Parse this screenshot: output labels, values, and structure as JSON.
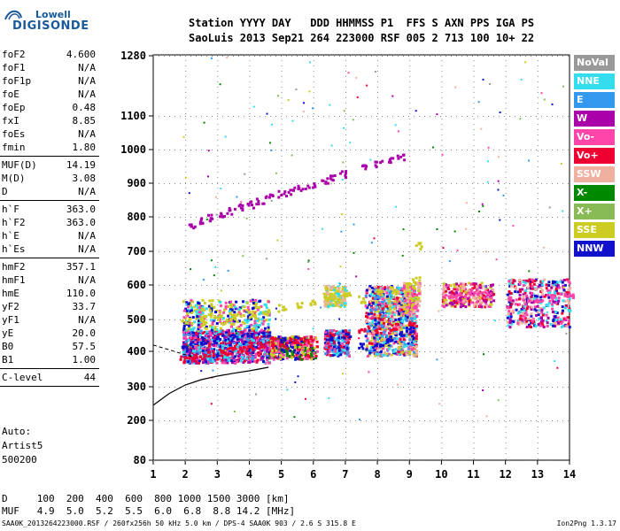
{
  "logo": {
    "line1": "Lowell",
    "line2": "DIGISONDE"
  },
  "header": {
    "labels": [
      "Station",
      "YYYY",
      "DAY",
      "DDD",
      "HHMMSS",
      "P1",
      "FFS",
      "S",
      "AXN",
      "PPS",
      "IGA",
      "PS"
    ],
    "values": [
      "SaoLuis",
      "2013",
      "Sep21",
      "264",
      "223000",
      "RSF",
      "005",
      "2",
      "713",
      "100",
      "10+",
      "22"
    ]
  },
  "params": [
    {
      "group": [
        [
          "foF2",
          "4.600"
        ],
        [
          "foF1",
          "N/A"
        ],
        [
          "foF1p",
          "N/A"
        ],
        [
          "foE",
          "N/A"
        ],
        [
          "foEp",
          "0.48"
        ],
        [
          "fxI",
          "8.85"
        ],
        [
          "foEs",
          "N/A"
        ],
        [
          "fmin",
          "1.80"
        ]
      ]
    },
    {
      "group": [
        [
          "MUF(D)",
          "14.19"
        ],
        [
          "M(D)",
          "3.08"
        ],
        [
          "D",
          "N/A"
        ]
      ]
    },
    {
      "group": [
        [
          "h`F",
          "363.0"
        ],
        [
          "h`F2",
          "363.0"
        ],
        [
          "h`E",
          "N/A"
        ],
        [
          "h`Es",
          "N/A"
        ]
      ]
    },
    {
      "group": [
        [
          "hmF2",
          "357.1"
        ],
        [
          "hmF1",
          "N/A"
        ],
        [
          "hmE",
          "110.0"
        ],
        [
          "yF2",
          "33.7"
        ],
        [
          "yF1",
          "N/A"
        ],
        [
          "yE",
          "20.0"
        ],
        [
          "B0",
          "57.5"
        ],
        [
          "B1",
          "1.00"
        ]
      ]
    },
    {
      "group": [
        [
          "C-level",
          "44"
        ]
      ]
    }
  ],
  "auto": {
    "l1": "Auto:",
    "l2": "Artist5",
    "l3": "500200"
  },
  "legend": [
    {
      "label": "NoVal",
      "color": "#999999"
    },
    {
      "label": "NNE",
      "color": "#33ddee"
    },
    {
      "label": "E",
      "color": "#3399ee"
    },
    {
      "label": "W",
      "color": "#aa00aa"
    },
    {
      "label": "Vo-",
      "color": "#ff44aa"
    },
    {
      "label": "Vo+",
      "color": "#ee0033"
    },
    {
      "label": "SSW",
      "color": "#f0b0a0"
    },
    {
      "label": "X-",
      "color": "#008800"
    },
    {
      "label": "X+",
      "color": "#88bb55"
    },
    {
      "label": "SSE",
      "color": "#cccc22"
    },
    {
      "label": "NNW",
      "color": "#1111cc"
    }
  ],
  "dtable": {
    "d_row": "D     100  200  400  600  800 1000 1500 3000 [km]",
    "muf_row": "MUF   4.9  5.0  5.2  5.5  6.0  6.8  8.8 14.2 [MHz]"
  },
  "footer": {
    "left": "SAA0K_2013264223000.RSF / 260fx256h 50 kHz 5.0 km / DPS-4 SAA0K 903 / 2.6 S 315.8 E",
    "right": "Ion2Png 1.3.17"
  },
  "chart_data": {
    "type": "scatter",
    "xlim": [
      1,
      14
    ],
    "ylim": [
      80,
      1280
    ],
    "xticks": [
      1,
      2,
      3,
      4,
      5,
      6,
      7,
      8,
      9,
      10,
      11,
      12,
      13,
      14
    ],
    "yticks": [
      80,
      200,
      300,
      400,
      500,
      600,
      700,
      800,
      900,
      1000,
      1100,
      1280
    ],
    "y_scale": "nonlinear",
    "series": [
      {
        "name": "W",
        "color": "#aa00aa",
        "points": [
          [
            2.2,
            780
          ],
          [
            2.5,
            790
          ],
          [
            2.8,
            800
          ],
          [
            3.1,
            810
          ],
          [
            3.4,
            820
          ],
          [
            3.7,
            830
          ],
          [
            4.0,
            840
          ],
          [
            4.3,
            850
          ],
          [
            4.6,
            860
          ],
          [
            5.0,
            870
          ],
          [
            5.3,
            880
          ],
          [
            5.6,
            890
          ],
          [
            5.9,
            900
          ],
          [
            6.3,
            910
          ],
          [
            6.6,
            920
          ],
          [
            6.9,
            930
          ],
          [
            7.6,
            950
          ],
          [
            8.0,
            960
          ],
          [
            8.4,
            970
          ],
          [
            8.7,
            980
          ]
        ]
      },
      {
        "name": "SSE",
        "color": "#cccc22",
        "points": [
          [
            2.0,
            500
          ],
          [
            2.5,
            505
          ],
          [
            3.0,
            510
          ],
          [
            3.5,
            515
          ],
          [
            4.0,
            520
          ],
          [
            4.5,
            525
          ],
          [
            5.0,
            535
          ],
          [
            5.5,
            545
          ],
          [
            6.0,
            555
          ],
          [
            6.5,
            565
          ],
          [
            7.0,
            575
          ],
          [
            7.5,
            560
          ],
          [
            8.0,
            580
          ],
          [
            8.5,
            590
          ],
          [
            9.0,
            600
          ],
          [
            9.2,
            620
          ],
          [
            9.3,
            720
          ]
        ]
      },
      {
        "name": "Vo+",
        "color": "#ee0033",
        "points": [
          [
            1.9,
            380
          ],
          [
            2.2,
            385
          ],
          [
            2.5,
            390
          ],
          [
            2.8,
            395
          ],
          [
            3.1,
            400
          ],
          [
            3.4,
            405
          ],
          [
            3.7,
            410
          ],
          [
            4.0,
            415
          ],
          [
            4.3,
            420
          ],
          [
            4.6,
            425
          ],
          [
            5.0,
            430
          ],
          [
            5.3,
            435
          ],
          [
            5.6,
            440
          ],
          [
            5.9,
            445
          ],
          [
            6.5,
            450
          ],
          [
            7.0,
            460
          ],
          [
            7.5,
            465
          ],
          [
            8.0,
            470
          ],
          [
            8.5,
            480
          ],
          [
            9.0,
            490
          ]
        ]
      },
      {
        "name": "NNW",
        "color": "#1111cc",
        "points": [
          [
            2.0,
            420
          ],
          [
            2.5,
            430
          ],
          [
            3.0,
            440
          ],
          [
            3.5,
            450
          ],
          [
            4.0,
            455
          ],
          [
            4.5,
            460
          ],
          [
            5.0,
            440
          ],
          [
            6.5,
            440
          ],
          [
            7.0,
            450
          ],
          [
            7.5,
            420
          ],
          [
            8.0,
            430
          ],
          [
            8.4,
            440
          ],
          [
            8.8,
            460
          ],
          [
            9.0,
            470
          ]
        ]
      },
      {
        "name": "Vo-",
        "color": "#ff44aa",
        "points": [
          [
            10.2,
            570
          ],
          [
            10.5,
            575
          ],
          [
            10.8,
            580
          ],
          [
            11.1,
            585
          ],
          [
            11.4,
            575
          ],
          [
            12.2,
            560
          ],
          [
            12.6,
            555
          ],
          [
            13.0,
            560
          ],
          [
            13.4,
            565
          ],
          [
            13.8,
            570
          ],
          [
            14.0,
            575
          ]
        ]
      }
    ],
    "trace_line": [
      [
        1,
        245
      ],
      [
        1.5,
        280
      ],
      [
        2,
        305
      ],
      [
        2.5,
        320
      ],
      [
        3,
        330
      ],
      [
        3.5,
        338
      ],
      [
        4,
        345
      ],
      [
        4.6,
        355
      ]
    ]
  }
}
